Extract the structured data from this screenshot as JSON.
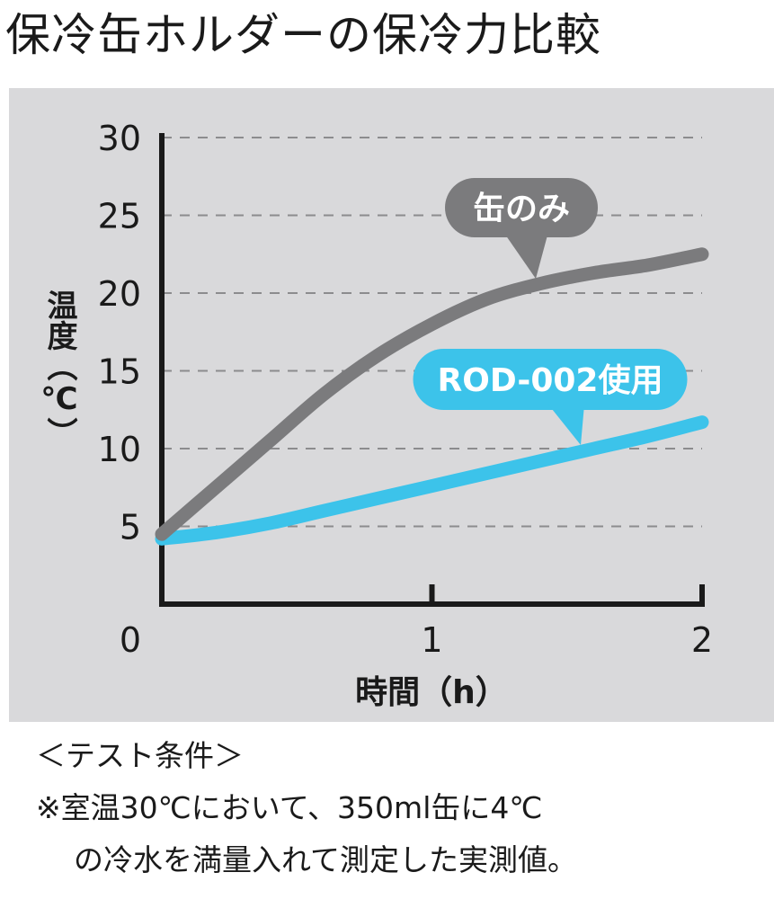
{
  "title": "保冷缶ホルダーの保冷力比較",
  "chart_data": {
    "type": "line",
    "x_ticks": [
      0,
      1,
      2
    ],
    "y_ticks": [
      5,
      10,
      15,
      20,
      25,
      30
    ],
    "y_zero_label": "0",
    "xlim": [
      0,
      2
    ],
    "ylim": [
      0,
      30
    ],
    "xlabel": "時間（h）",
    "ylabel": "温度（℃）",
    "grid": "horizontal-dashed",
    "series": [
      {
        "name": "缶のみ",
        "color": "#7b7b7d",
        "x": [
          0,
          0.2,
          0.4,
          0.6,
          0.8,
          1.0,
          1.2,
          1.4,
          1.6,
          1.8,
          2.0
        ],
        "y": [
          4.5,
          7.5,
          10.5,
          13.5,
          16.0,
          18.0,
          19.6,
          20.6,
          21.3,
          21.8,
          22.5
        ]
      },
      {
        "name": "ROD-002使用",
        "color": "#3cc3ea",
        "x": [
          0,
          0.2,
          0.4,
          0.6,
          0.8,
          1.0,
          1.2,
          1.4,
          1.6,
          1.8,
          2.0
        ],
        "y": [
          4.2,
          4.6,
          5.2,
          6.0,
          6.8,
          7.6,
          8.4,
          9.2,
          10.0,
          10.8,
          11.7
        ]
      }
    ]
  },
  "notes": {
    "heading": "＜テスト条件＞",
    "line1": "※室温30℃において、350ml缶に4℃",
    "line2": "の冷水を満量入れて測定した実測値。"
  }
}
